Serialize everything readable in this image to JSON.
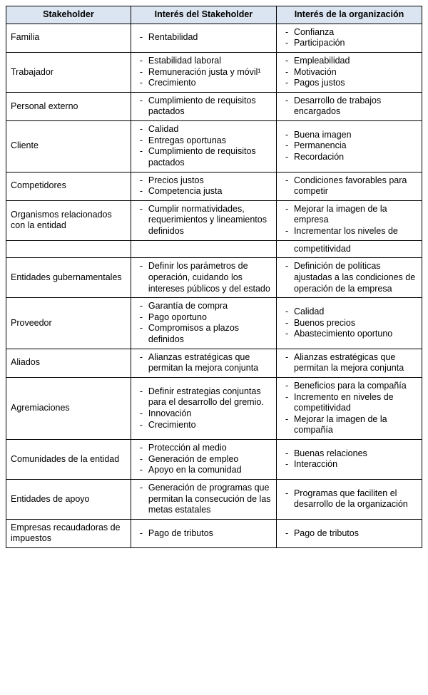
{
  "table": {
    "headers": {
      "c1": "Stakeholder",
      "c2": "Interés del Stakeholder",
      "c3": "Interés de la organización"
    },
    "rows": [
      {
        "stakeholder": "Familia",
        "interest_stake": [
          "Rentabilidad"
        ],
        "interest_org": [
          "Confianza",
          "Participación"
        ]
      },
      {
        "stakeholder": "Trabajador",
        "interest_stake": [
          "Estabilidad laboral",
          "Remuneración justa y móvil¹",
          "Crecimiento"
        ],
        "interest_org": [
          "Empleabilidad",
          "Motivación",
          "Pagos justos"
        ]
      },
      {
        "stakeholder": "Personal externo",
        "interest_stake": [
          "Cumplimiento de requisitos pactados"
        ],
        "interest_org": [
          "Desarrollo de trabajos encargados"
        ]
      },
      {
        "stakeholder": "Cliente",
        "interest_stake": [
          "Calidad",
          "Entregas oportunas",
          "Cumplimiento de requisitos pactados"
        ],
        "interest_org": [
          "Buena imagen",
          "Permanencia",
          "Recordación"
        ]
      },
      {
        "stakeholder": "Competidores",
        "interest_stake": [
          "Precios justos",
          "Competencia justa"
        ],
        "interest_org": [
          "Condiciones favorables para competir"
        ]
      },
      {
        "stakeholder": "Organismos relacionados con la entidad",
        "interest_stake": [
          "Cumplir normatividades, requerimientos y lineamientos definidos"
        ],
        "interest_org": [
          "Mejorar la imagen de la empresa",
          "Incrementar los niveles de"
        ]
      },
      {
        "orphan_org": "competitividad"
      },
      {
        "stakeholder": "Entidades gubernamentales",
        "interest_stake": [
          "Definir los parámetros de operación, cuidando los intereses públicos y del estado"
        ],
        "interest_org": [
          "Definición de políticas ajustadas a las condiciones de operación de la empresa"
        ]
      },
      {
        "stakeholder": "Proveedor",
        "interest_stake": [
          "Garantía de compra",
          "Pago oportuno",
          "Compromisos a plazos definidos"
        ],
        "interest_org": [
          "Calidad",
          "Buenos precios",
          "Abastecimiento oportuno"
        ]
      },
      {
        "stakeholder": "Aliados",
        "interest_stake": [
          "Alianzas estratégicas que permitan la mejora conjunta"
        ],
        "interest_org": [
          "Alianzas estratégicas que permitan la mejora conjunta"
        ]
      },
      {
        "stakeholder": "Agremiaciones",
        "interest_stake": [
          "Definir estrategias conjuntas para el desarrollo del gremio.",
          "Innovación",
          "Crecimiento"
        ],
        "interest_org": [
          "Beneficios para la compañía",
          "Incremento en niveles de competitividad",
          "Mejorar la imagen de la compañía"
        ]
      },
      {
        "stakeholder": "Comunidades de la entidad",
        "interest_stake": [
          "Protección al medio",
          "Generación de empleo",
          "Apoyo en la comunidad"
        ],
        "interest_org": [
          "Buenas relaciones",
          "Interacción"
        ]
      },
      {
        "stakeholder": "Entidades de apoyo",
        "interest_stake": [
          "Generación de programas que permitan la consecución de las metas estatales"
        ],
        "interest_org": [
          "Programas que faciliten el desarrollo de la organización"
        ]
      },
      {
        "stakeholder": "Empresas recaudadoras de impuestos",
        "interest_stake": [
          "Pago de tributos"
        ],
        "interest_org": [
          "Pago de tributos"
        ]
      }
    ]
  },
  "style": {
    "header_bg": "#dbe5f1",
    "border_color": "#000000",
    "text_color": "#000000",
    "font_family": "Arial",
    "font_size_body": 12.5,
    "font_size_header": 12.5,
    "col_widths_pct": [
      30,
      35,
      35
    ],
    "page_bg": "#ffffff"
  }
}
